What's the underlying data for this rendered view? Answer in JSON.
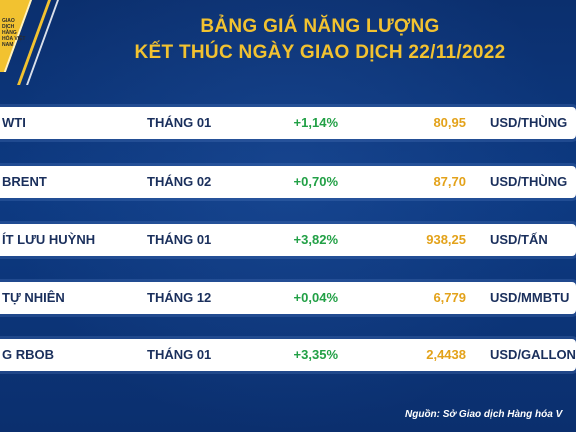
{
  "header": {
    "title_line1": "BẢNG GIÁ NĂNG LƯỢNG",
    "title_line2": "KẾT THÚC NGÀY GIAO DỊCH 22/11/2022",
    "logo_text": "GIAO DỊCH HÀNG HÓA VIỆT NAM",
    "accent_color": "#f2c230"
  },
  "rows": [
    {
      "name": "WTI",
      "month": "THÁNG 01",
      "change": "+1,14%",
      "price": "80,95",
      "unit": "USD/THÙNG"
    },
    {
      "name": "BRENT",
      "month": "THÁNG 02",
      "change": "+0,70%",
      "price": "87,70",
      "unit": "USD/THÙNG"
    },
    {
      "name": "ÍT LƯU HUỲNH",
      "month": "THÁNG 01",
      "change": "+3,82%",
      "price": "938,25",
      "unit": "USD/TẤN"
    },
    {
      "name": "TỰ NHIÊN",
      "month": "THÁNG 12",
      "change": "+0,04%",
      "price": "6,779",
      "unit": "USD/MMBTU"
    },
    {
      "name": "G RBOB",
      "month": "THÁNG 01",
      "change": "+3,35%",
      "price": "2,4438",
      "unit": "USD/GALLON"
    }
  ],
  "colors": {
    "positive_change": "#22a046",
    "price": "#e3a21a",
    "text": "#1a2f5c",
    "background": "#0d3a82"
  },
  "footer": {
    "source": "Nguồn: Sở Giao dịch Hàng hóa V"
  }
}
